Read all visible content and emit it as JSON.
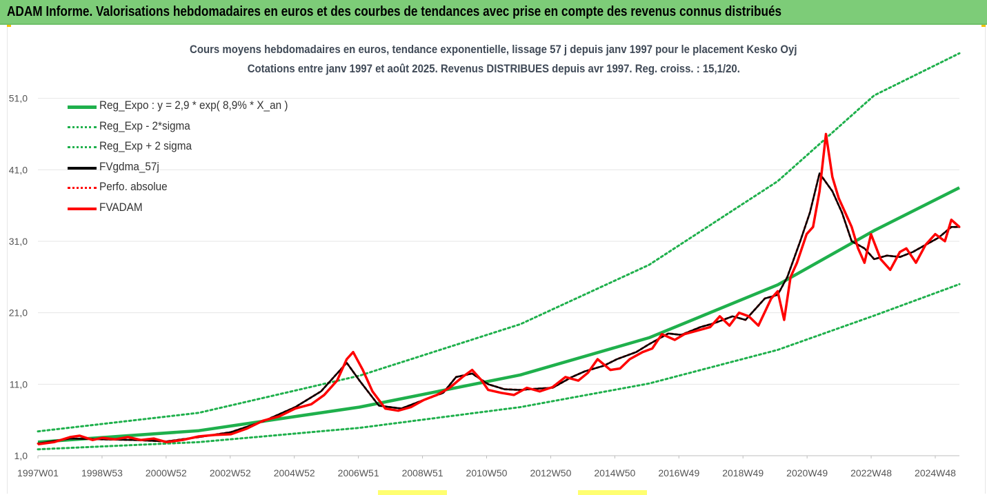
{
  "banner": {
    "title": "ADAM Informe. Valorisations hebdomadaires en euros et des courbes de tendances avec prise en compte des revenus connus distribués"
  },
  "chart_data": {
    "type": "line",
    "title": "Cours moyens hebdomadaires en euros, tendance exponentielle, lissage 57 j depuis janv 1997 pour le placement Kesko Oyj",
    "subtitle": "Cotations entre janv 1997 et août 2025. Revenus DISTRIBUES depuis avr 1997. Reg. croiss. : 15,1/20.",
    "xlabel": "",
    "ylabel": "",
    "x_ticks": [
      "1997W01",
      "1998W53",
      "2000W52",
      "2002W52",
      "2004W52",
      "2006W51",
      "2008W51",
      "2010W50",
      "2012W50",
      "2014W50",
      "2016W49",
      "2018W49",
      "2020W49",
      "2022W48",
      "2024W48"
    ],
    "y_ticks": [
      "1,0",
      "11,0",
      "21,0",
      "31,0",
      "41,0",
      "51,0"
    ],
    "xlim": [
      1997.0,
      2025.65
    ],
    "ylim": [
      1.0,
      58.0
    ],
    "grid": "horizontal",
    "legend_position": "top-left",
    "series": [
      {
        "name": "Reg_Expo : y = 2,9 * exp( 8,9% *  X_an )",
        "color": "#1fb04c",
        "style": "solid",
        "x": [
          1997.0,
          2002.0,
          2007.0,
          2012.0,
          2016.0,
          2020.0,
          2023.0,
          2025.65
        ],
        "y": [
          2.9,
          4.5,
          7.8,
          12.3,
          17.5,
          24.9,
          32.5,
          38.5
        ]
      },
      {
        "name": "Reg_Exp - 2*sigma",
        "color": "#1fb04c",
        "style": "dotted",
        "x": [
          1997.0,
          2002.0,
          2007.0,
          2012.0,
          2016.0,
          2020.0,
          2023.0,
          2025.65
        ],
        "y": [
          1.9,
          2.9,
          4.9,
          7.8,
          11.1,
          15.8,
          20.6,
          25.0
        ]
      },
      {
        "name": "Reg_Exp + 2 sigma",
        "color": "#1fb04c",
        "style": "dotted",
        "x": [
          1997.0,
          2002.0,
          2007.0,
          2012.0,
          2016.0,
          2020.0,
          2023.0,
          2025.65
        ],
        "y": [
          4.4,
          7.0,
          12.2,
          19.4,
          27.7,
          39.4,
          51.4,
          57.3
        ]
      },
      {
        "name": "FVgdma_57j",
        "color": "#000000",
        "style": "solid",
        "x": [
          1997.0,
          1998.0,
          1999.0,
          2000.0,
          2001.0,
          2002.0,
          2003.0,
          2004.0,
          2005.0,
          2005.8,
          2006.6,
          2007.0,
          2007.6,
          2008.3,
          2009.0,
          2009.6,
          2010.0,
          2010.5,
          2011.0,
          2011.5,
          2012.0,
          2012.6,
          2013.0,
          2013.6,
          2014.0,
          2014.6,
          2015.0,
          2015.6,
          2016.0,
          2016.6,
          2017.0,
          2017.6,
          2018.0,
          2018.6,
          2019.0,
          2019.6,
          2020.0,
          2020.3,
          2020.7,
          2021.0,
          2021.3,
          2021.7,
          2022.0,
          2022.3,
          2022.7,
          2023.0,
          2023.4,
          2023.8,
          2024.2,
          2024.6,
          2025.0,
          2025.4,
          2025.65
        ],
        "y": [
          2.7,
          3.4,
          3.3,
          3.2,
          3.0,
          3.6,
          4.3,
          5.8,
          7.8,
          10.0,
          14.0,
          11.5,
          8.0,
          7.6,
          8.8,
          9.8,
          12.0,
          12.5,
          11.0,
          10.3,
          10.2,
          10.4,
          10.5,
          12.0,
          12.8,
          13.6,
          14.5,
          15.5,
          16.6,
          18.1,
          17.9,
          19.0,
          19.5,
          20.5,
          20.0,
          23.0,
          23.5,
          26.0,
          31.0,
          35.0,
          40.5,
          38.0,
          35.0,
          31.0,
          30.0,
          28.5,
          29.0,
          28.8,
          29.5,
          30.5,
          31.5,
          33.0,
          33.0
        ]
      },
      {
        "name": "Perfo. absolue",
        "color": "#ff0000",
        "style": "dotted",
        "x": [
          1997.0,
          1998.0,
          1999.0,
          2000.0,
          2001.0,
          2002.0,
          2003.0,
          2004.0,
          2005.0,
          2005.8,
          2006.6,
          2007.0,
          2007.6,
          2008.3,
          2009.0,
          2009.6,
          2010.0,
          2010.5,
          2011.0,
          2011.5,
          2012.0,
          2012.6,
          2013.0,
          2013.6,
          2014.0,
          2014.6,
          2015.0,
          2015.6,
          2016.0,
          2016.6,
          2017.0,
          2017.6,
          2018.0,
          2018.6,
          2019.0,
          2019.6,
          2020.0,
          2020.3,
          2020.7,
          2021.0,
          2021.3,
          2021.7,
          2022.0,
          2022.3,
          2022.7,
          2023.0,
          2023.4,
          2023.8,
          2024.2,
          2024.6,
          2025.0,
          2025.4,
          2025.65
        ],
        "y": [
          2.7,
          3.4,
          3.3,
          3.2,
          3.0,
          3.6,
          4.3,
          5.8,
          7.8,
          10.0,
          14.0,
          11.5,
          8.0,
          7.6,
          8.8,
          9.8,
          12.0,
          12.5,
          11.0,
          10.3,
          10.2,
          10.4,
          10.5,
          12.0,
          12.8,
          13.6,
          14.5,
          15.5,
          16.6,
          18.1,
          17.9,
          19.0,
          19.5,
          20.5,
          20.0,
          23.0,
          23.5,
          26.0,
          31.0,
          35.0,
          40.5,
          38.0,
          35.0,
          31.0,
          30.0,
          28.5,
          29.0,
          28.8,
          29.5,
          30.5,
          31.5,
          33.0,
          33.0
        ]
      },
      {
        "name": "FVADAM",
        "color": "#ff0000",
        "style": "solid",
        "x": [
          1997.0,
          1997.5,
          1998.0,
          1998.3,
          1998.7,
          1999.0,
          1999.4,
          1999.8,
          2000.2,
          2000.6,
          2001.0,
          2001.5,
          2002.0,
          2002.5,
          2003.0,
          2003.5,
          2004.0,
          2004.5,
          2005.0,
          2005.5,
          2005.9,
          2006.3,
          2006.6,
          2006.8,
          2007.1,
          2007.4,
          2007.8,
          2008.2,
          2008.6,
          2009.0,
          2009.4,
          2009.8,
          2010.2,
          2010.5,
          2010.8,
          2011.0,
          2011.4,
          2011.8,
          2012.2,
          2012.6,
          2013.0,
          2013.4,
          2013.8,
          2014.1,
          2014.4,
          2014.8,
          2015.1,
          2015.4,
          2015.8,
          2016.1,
          2016.4,
          2016.8,
          2017.1,
          2017.5,
          2017.9,
          2018.2,
          2018.5,
          2018.8,
          2019.1,
          2019.4,
          2019.8,
          2020.0,
          2020.2,
          2020.4,
          2020.6,
          2020.9,
          2021.1,
          2021.3,
          2021.5,
          2021.7,
          2021.9,
          2022.1,
          2022.3,
          2022.5,
          2022.7,
          2022.9,
          2023.2,
          2023.5,
          2023.8,
          2024.0,
          2024.3,
          2024.6,
          2024.9,
          2025.2,
          2025.4,
          2025.65
        ],
        "y": [
          2.6,
          2.9,
          3.6,
          3.8,
          3.2,
          3.5,
          3.3,
          3.6,
          3.2,
          3.4,
          2.9,
          3.2,
          3.7,
          3.9,
          4.0,
          4.8,
          5.9,
          6.5,
          7.6,
          8.2,
          9.5,
          11.5,
          14.5,
          15.5,
          13.0,
          10.0,
          7.6,
          7.3,
          7.8,
          8.8,
          9.5,
          10.5,
          12.0,
          13.0,
          11.5,
          10.2,
          9.8,
          9.5,
          10.5,
          10.0,
          10.6,
          12.0,
          11.5,
          12.6,
          14.5,
          13.0,
          13.2,
          14.5,
          15.5,
          16.0,
          18.0,
          17.2,
          18.0,
          18.5,
          19.0,
          20.5,
          19.2,
          21.0,
          20.5,
          19.2,
          23.0,
          24.0,
          20.0,
          26.0,
          28.0,
          32.0,
          33.0,
          38.0,
          46.0,
          40.0,
          37.0,
          35.0,
          33.0,
          30.0,
          28.0,
          32.0,
          28.5,
          27.0,
          29.5,
          30.0,
          28.0,
          30.5,
          32.0,
          31.0,
          34.0,
          33.0
        ]
      }
    ]
  }
}
